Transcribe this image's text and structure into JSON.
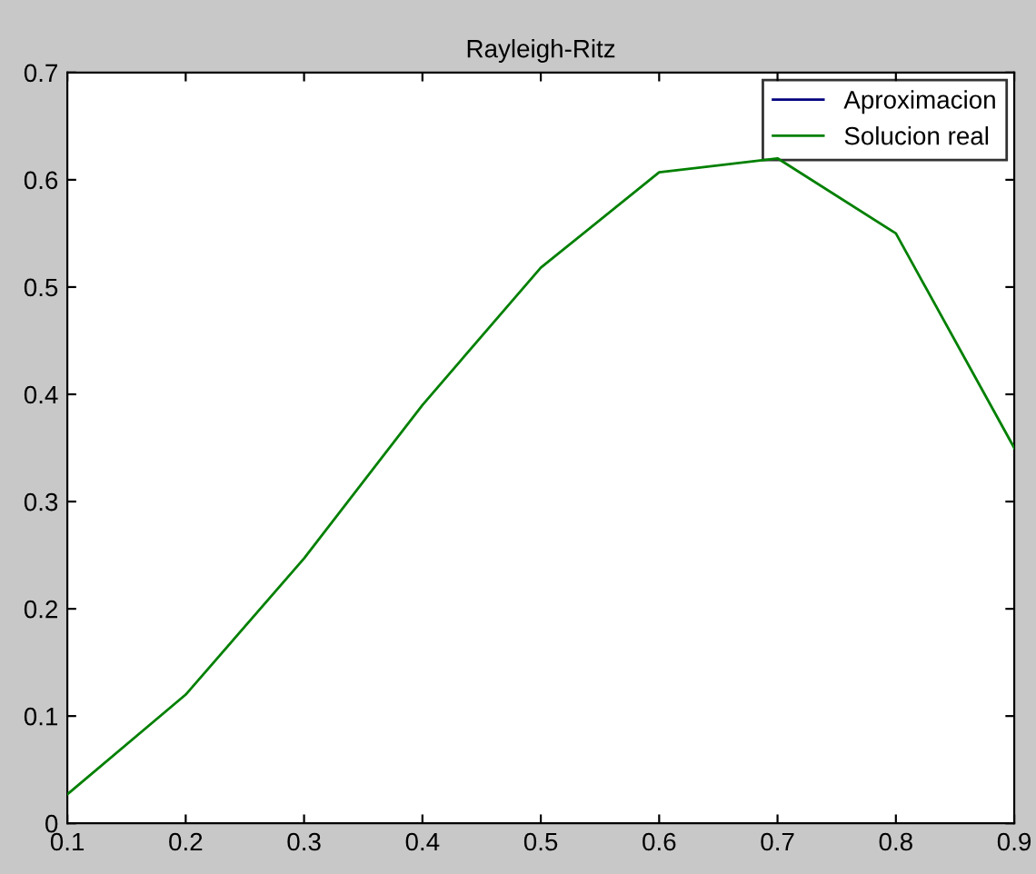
{
  "chart_data": {
    "type": "line",
    "title": "Rayleigh-Ritz",
    "x": [
      0.1,
      0.2,
      0.3,
      0.4,
      0.5,
      0.6,
      0.7,
      0.8,
      0.9
    ],
    "series": [
      {
        "name": "Aproximacion",
        "color": "#00007f",
        "values": [
          null,
          null,
          null,
          null,
          null,
          null,
          null,
          null,
          null
        ]
      },
      {
        "name": "Solucion real",
        "color": "#008000",
        "values": [
          0.027,
          0.12,
          0.247,
          0.39,
          0.518,
          0.607,
          0.62,
          0.55,
          0.35
        ]
      }
    ],
    "xlim": [
      0.1,
      0.9
    ],
    "xticks": [
      0.1,
      0.2,
      0.3,
      0.4,
      0.5,
      0.6,
      0.7,
      0.8,
      0.9
    ],
    "ylim": [
      0,
      0.7
    ],
    "yticks": [
      0,
      0.1,
      0.2,
      0.3,
      0.4,
      0.5,
      0.6,
      0.7
    ],
    "grid": false,
    "legend": "top right",
    "marker": "none",
    "line_style": "solid"
  }
}
